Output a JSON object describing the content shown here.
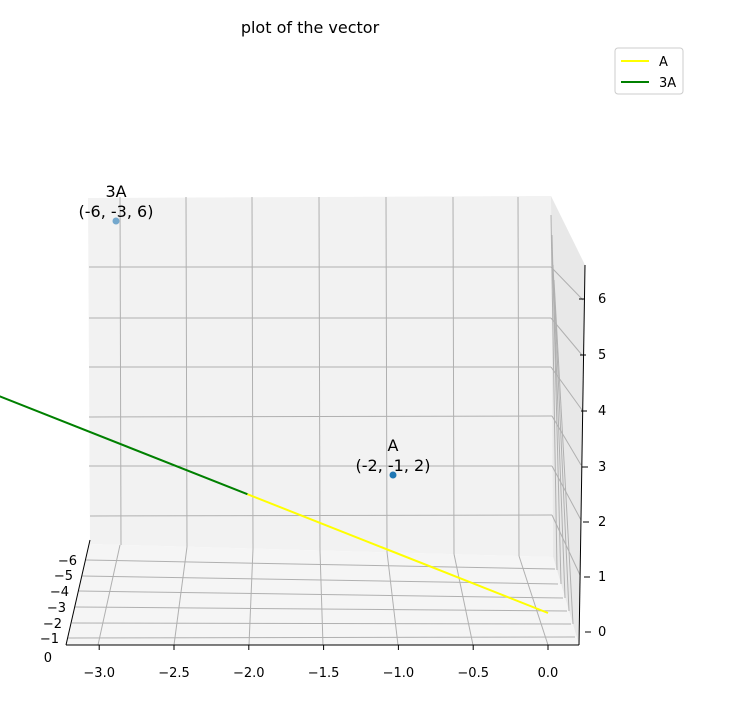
{
  "chart_data": {
    "type": "line",
    "projection": "3d",
    "title": "plot of the vector",
    "xlabel": "",
    "ylabel": "",
    "zlabel": "",
    "xlim": [
      -3.2,
      0.2
    ],
    "ylim": [
      -6.4,
      0
    ],
    "zlim": [
      -0.1,
      6.6
    ],
    "x_ticks": [
      "−3.0",
      "−2.5",
      "−2.0",
      "−1.5",
      "−1.0",
      "−0.5",
      "0.0"
    ],
    "y_ticks": [
      "−6",
      "−5",
      "−4",
      "−3",
      "−2",
      "−1",
      "0"
    ],
    "z_ticks": [
      "0",
      "1",
      "2",
      "3",
      "4",
      "5",
      "6"
    ],
    "grid": true,
    "legend_position": "top-right",
    "series": [
      {
        "name": "A",
        "color": "#ffff00",
        "start": [
          0,
          0,
          0
        ],
        "end": [
          -2,
          -1,
          2
        ]
      },
      {
        "name": "3A",
        "color": "#008000",
        "start": [
          -2,
          -1,
          2
        ],
        "end": [
          -6,
          -3,
          6
        ]
      }
    ],
    "points": [
      {
        "name": "A",
        "coords": [
          -2,
          -1,
          2
        ],
        "label": "A",
        "sublabel": "(-2, -1, 2)"
      },
      {
        "name": "3A",
        "coords": [
          -6,
          -3,
          6
        ],
        "label": "3A",
        "sublabel": "(-6, -3, 6)"
      }
    ]
  }
}
